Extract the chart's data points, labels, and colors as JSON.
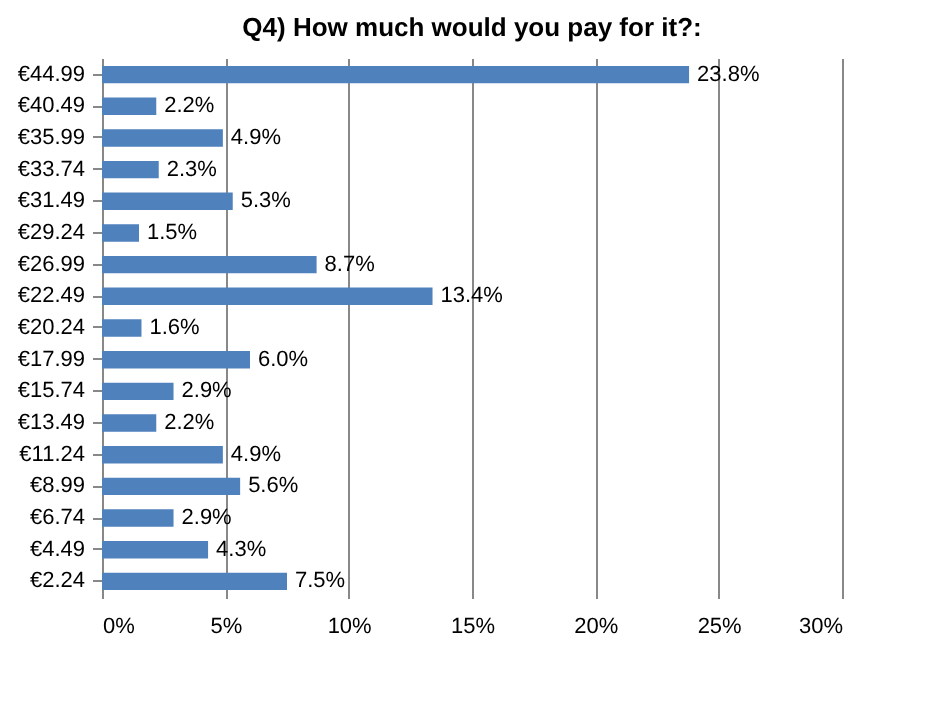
{
  "chart_data": {
    "type": "bar",
    "orientation": "horizontal",
    "title": "Q4) How much would you pay for it?:",
    "categories": [
      "€44.99",
      "€40.49",
      "€35.99",
      "€33.74",
      "€31.49",
      "€29.24",
      "€26.99",
      "€22.49",
      "€20.24",
      "€17.99",
      "€15.74",
      "€13.49",
      "€11.24",
      "€8.99",
      "€6.74",
      "€4.49",
      "€2.24"
    ],
    "values": [
      23.8,
      2.2,
      4.9,
      2.3,
      5.3,
      1.5,
      8.7,
      13.4,
      1.6,
      6.0,
      2.9,
      2.2,
      4.9,
      5.6,
      2.9,
      4.3,
      7.5
    ],
    "value_labels": [
      "23.8%",
      "2.2%",
      "4.9%",
      "2.3%",
      "5.3%",
      "1.5%",
      "8.7%",
      "13.4%",
      "1.6%",
      "6.0%",
      "2.9%",
      "2.2%",
      "4.9%",
      "5.6%",
      "2.9%",
      "4.3%",
      "7.5%"
    ],
    "color": "#4f81bd",
    "xlim": [
      0,
      30
    ],
    "xticks": [
      {
        "value": 0,
        "label": "0%"
      },
      {
        "value": 5,
        "label": "5%"
      },
      {
        "value": 10,
        "label": "10%"
      },
      {
        "value": 15,
        "label": "15%"
      },
      {
        "value": 20,
        "label": "20%"
      },
      {
        "value": 25,
        "label": "25%"
      },
      {
        "value": 30,
        "label": "30%"
      }
    ],
    "grid": "x"
  }
}
